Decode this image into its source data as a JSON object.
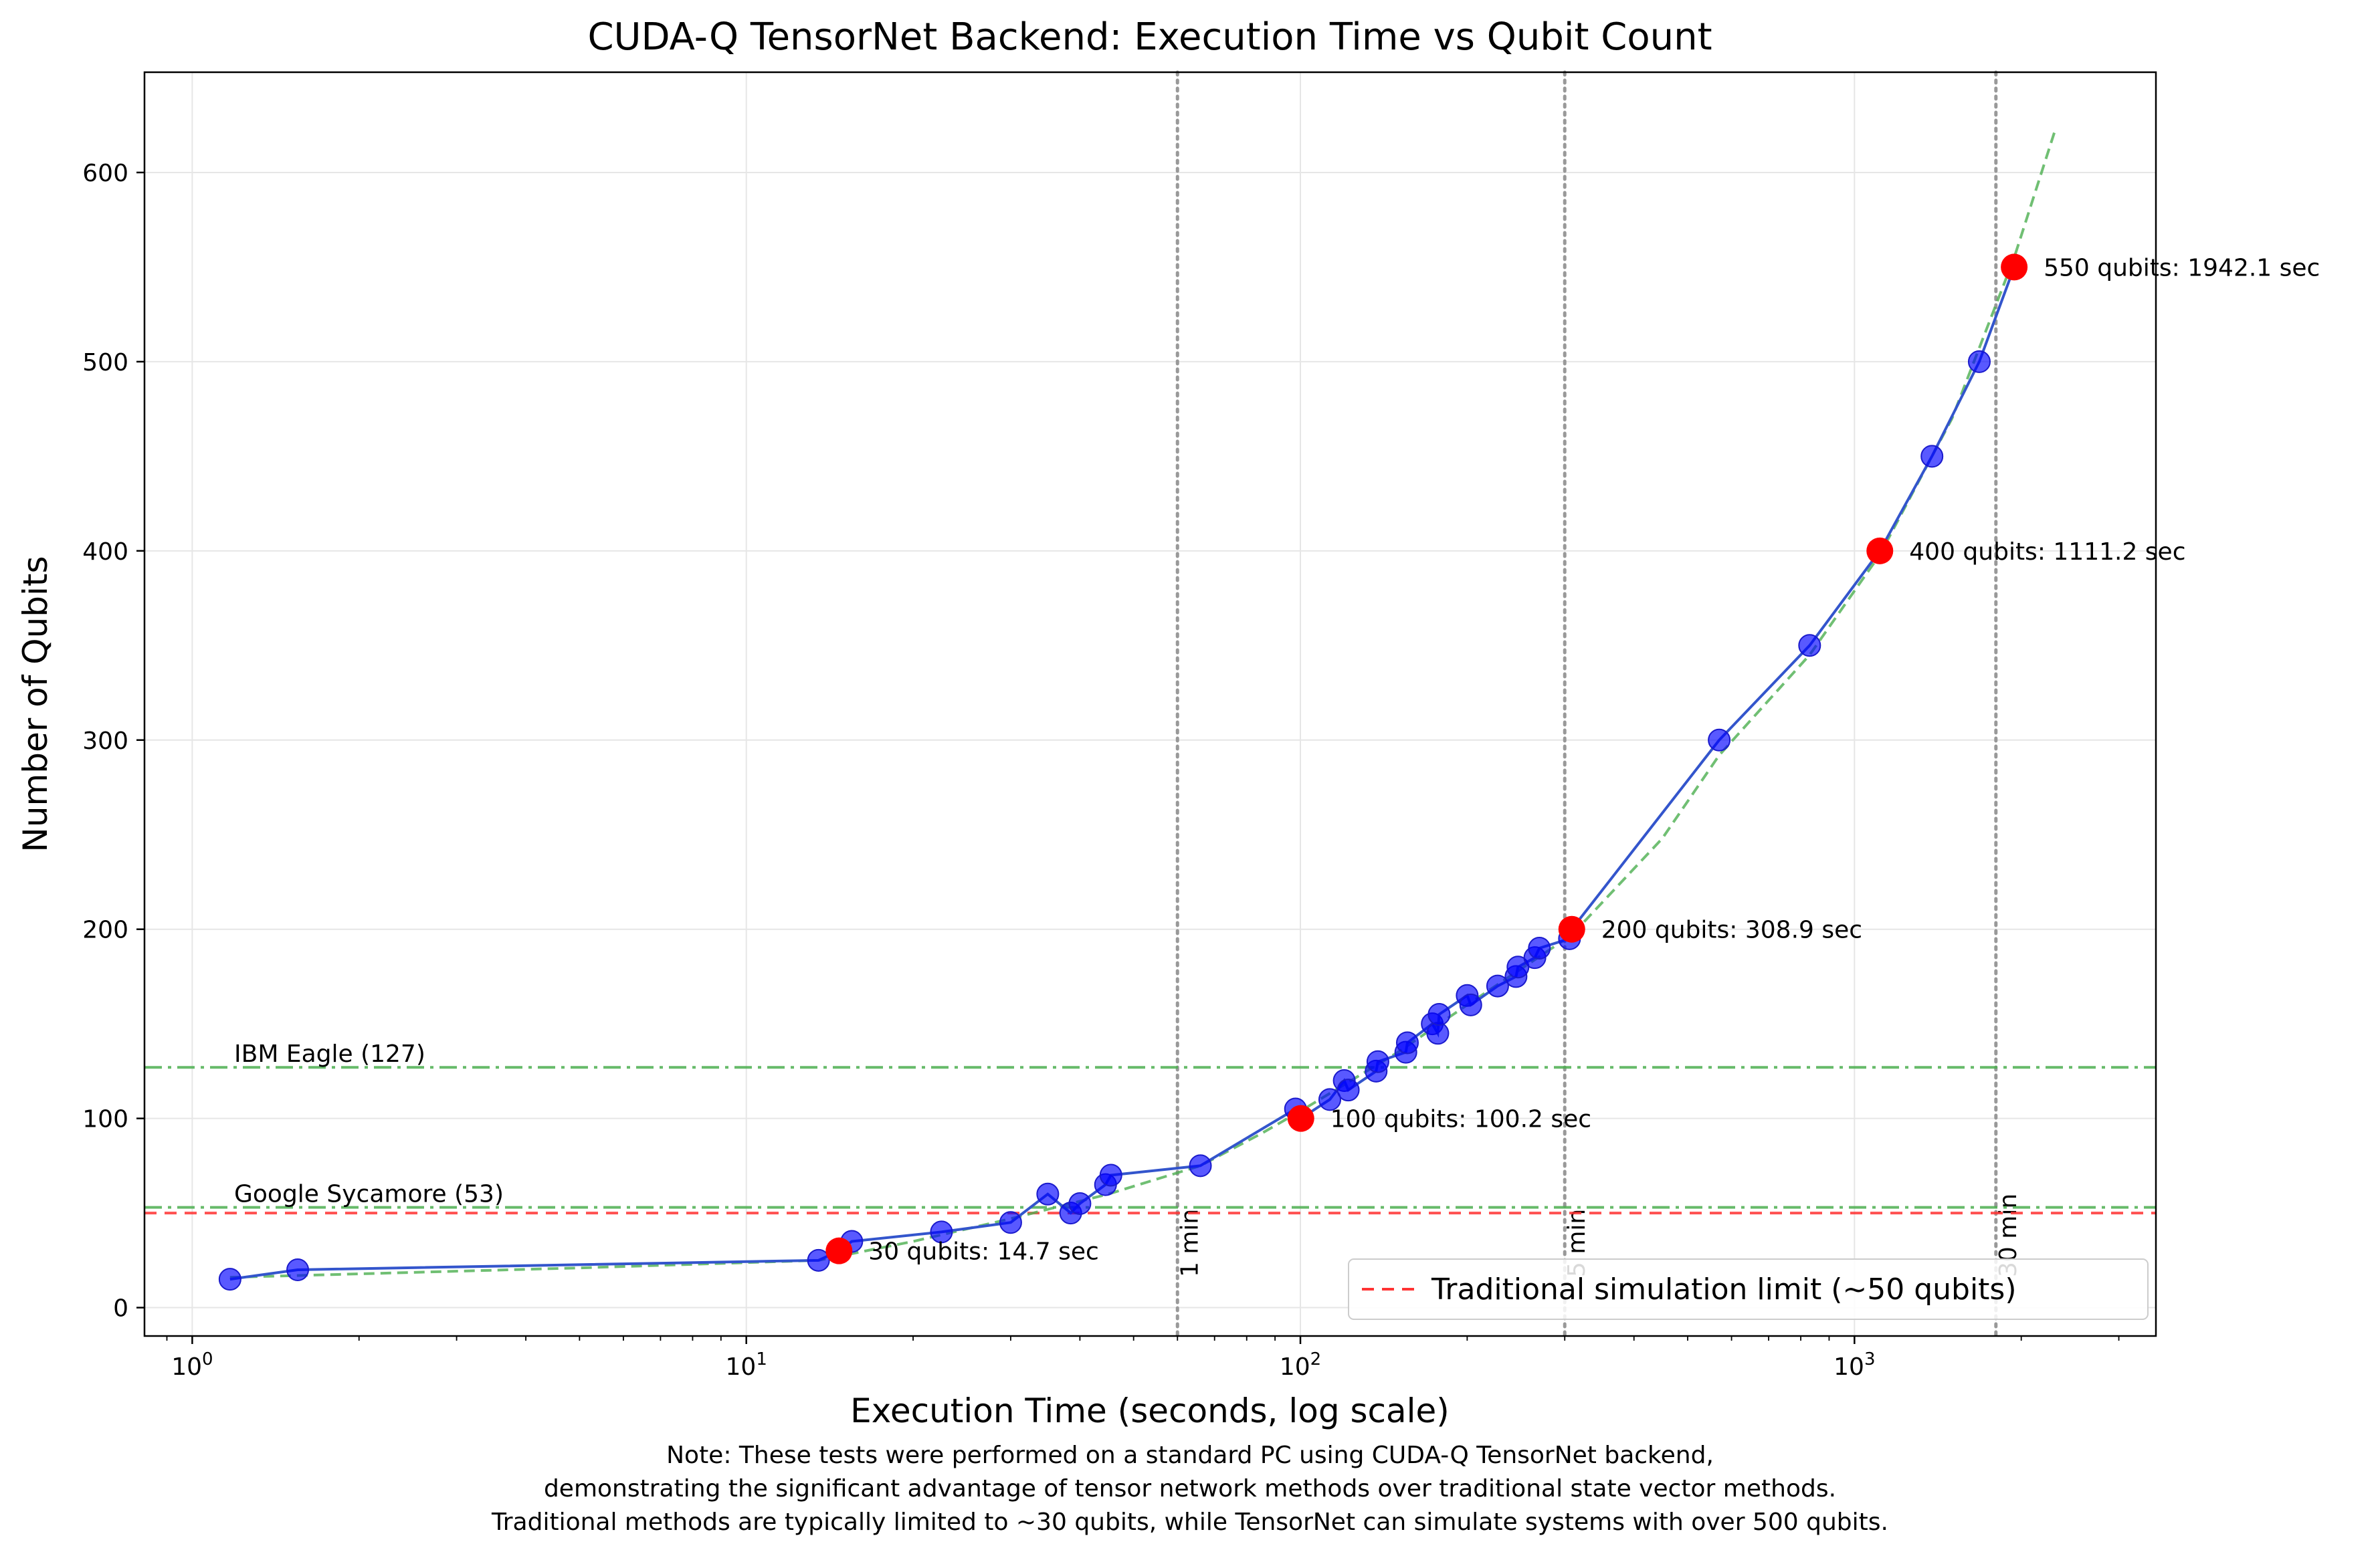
{
  "chart_data": {
    "type": "scatter",
    "title": "CUDA-Q TensorNet Backend: Execution Time vs Qubit Count",
    "xlabel": "Execution Time (seconds, log scale)",
    "ylabel": "Number of Qubits",
    "xscale": "log",
    "xlim": [
      0.82,
      3500
    ],
    "ylim": [
      -15,
      653
    ],
    "x_ticks": [
      {
        "value": 1,
        "base": "10",
        "exp": "0"
      },
      {
        "value": 10,
        "base": "10",
        "exp": "1"
      },
      {
        "value": 100,
        "base": "10",
        "exp": "2"
      },
      {
        "value": 1000,
        "base": "10",
        "exp": "3"
      }
    ],
    "y_ticks": [
      {
        "value": 0,
        "label": "0"
      },
      {
        "value": 100,
        "label": "100"
      },
      {
        "value": 200,
        "label": "200"
      },
      {
        "value": 300,
        "label": "300"
      },
      {
        "value": 400,
        "label": "400"
      },
      {
        "value": 500,
        "label": "500"
      },
      {
        "value": 600,
        "label": "600"
      }
    ],
    "grid": true,
    "series_measured": {
      "color": "#0000ff",
      "line_color": "#3355cc",
      "points": [
        [
          1.17,
          15
        ],
        [
          1.55,
          20
        ],
        [
          13.5,
          25
        ],
        [
          15.5,
          35
        ],
        [
          22.5,
          40
        ],
        [
          30,
          45
        ],
        [
          35,
          60
        ],
        [
          38.5,
          50
        ],
        [
          40,
          55
        ],
        [
          44.5,
          65
        ],
        [
          45.5,
          70
        ],
        [
          66,
          75
        ],
        [
          98,
          105
        ],
        [
          113,
          110
        ],
        [
          120,
          120
        ],
        [
          122,
          115
        ],
        [
          137,
          125
        ],
        [
          138,
          130
        ],
        [
          155,
          135
        ],
        [
          156,
          140
        ],
        [
          173,
          150
        ],
        [
          177,
          145
        ],
        [
          178,
          155
        ],
        [
          200,
          165
        ],
        [
          203,
          160
        ],
        [
          227,
          170
        ],
        [
          245,
          175
        ],
        [
          247,
          180
        ],
        [
          265,
          185
        ],
        [
          270,
          190
        ],
        [
          306,
          195
        ],
        [
          570,
          300
        ],
        [
          830,
          350
        ],
        [
          1380,
          450
        ],
        [
          1680,
          500
        ]
      ]
    },
    "highlighted_points": [
      {
        "x": 14.7,
        "y": 30,
        "label": "30 qubits: 14.7 sec"
      },
      {
        "x": 100.2,
        "y": 100,
        "label": "100 qubits: 100.2 sec"
      },
      {
        "x": 308.9,
        "y": 200,
        "label": "200 qubits: 308.9 sec"
      },
      {
        "x": 1111.2,
        "y": 400,
        "label": "400 qubits: 1111.2 sec"
      },
      {
        "x": 1942.1,
        "y": 550,
        "label": "550 qubits: 1942.1 sec"
      }
    ],
    "trend_line": {
      "color": "#4caf50",
      "points": [
        [
          1.17,
          16
        ],
        [
          5,
          21
        ],
        [
          13.5,
          25
        ],
        [
          20,
          35
        ],
        [
          30,
          47
        ],
        [
          45,
          60
        ],
        [
          66,
          75
        ],
        [
          85,
          92
        ],
        [
          100.2,
          104
        ],
        [
          150,
          135
        ],
        [
          200,
          160
        ],
        [
          308.9,
          197
        ],
        [
          450,
          248
        ],
        [
          570,
          292
        ],
        [
          830,
          345
        ],
        [
          1111.2,
          398
        ],
        [
          1500,
          470
        ],
        [
          1942.1,
          555
        ],
        [
          2300,
          622
        ]
      ]
    },
    "hlines": [
      {
        "y": 127,
        "label": "IBM Eagle (127)",
        "color": "#4caf50",
        "style": "dashdot"
      },
      {
        "y": 53,
        "label": "Google Sycamore (53)",
        "color": "#4caf50",
        "style": "dashdot"
      },
      {
        "y": 50,
        "label": "",
        "color": "#ff3333",
        "style": "dashed"
      }
    ],
    "vlines": [
      {
        "x": 60,
        "label": "1 min"
      },
      {
        "x": 300,
        "label": "5 min"
      },
      {
        "x": 1800,
        "label": "30 min"
      }
    ],
    "legend": {
      "placement": "lower-right",
      "entries": [
        {
          "label": "Traditional simulation limit (~50 qubits)",
          "color": "#ff3333"
        }
      ]
    }
  },
  "note": {
    "line1": "Note: These tests were performed on a standard PC using CUDA-Q TensorNet backend,",
    "line2": "demonstrating the significant advantage of tensor network methods over traditional state vector methods.",
    "line3": "Traditional methods are typically limited to ~30 qubits, while TensorNet can simulate systems with over 500 qubits."
  }
}
